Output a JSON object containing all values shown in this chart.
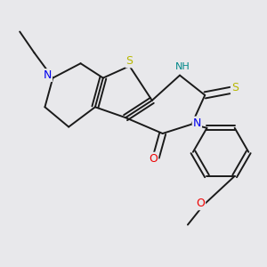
{
  "background_color": "#e8e8eb",
  "bond_color": "#1a1a1a",
  "atom_colors": {
    "S": "#b8b800",
    "N": "#0000ee",
    "O": "#ee0000",
    "NH": "#008888",
    "C": "#1a1a1a"
  },
  "figsize": [
    3.0,
    3.0
  ],
  "dpi": 100
}
